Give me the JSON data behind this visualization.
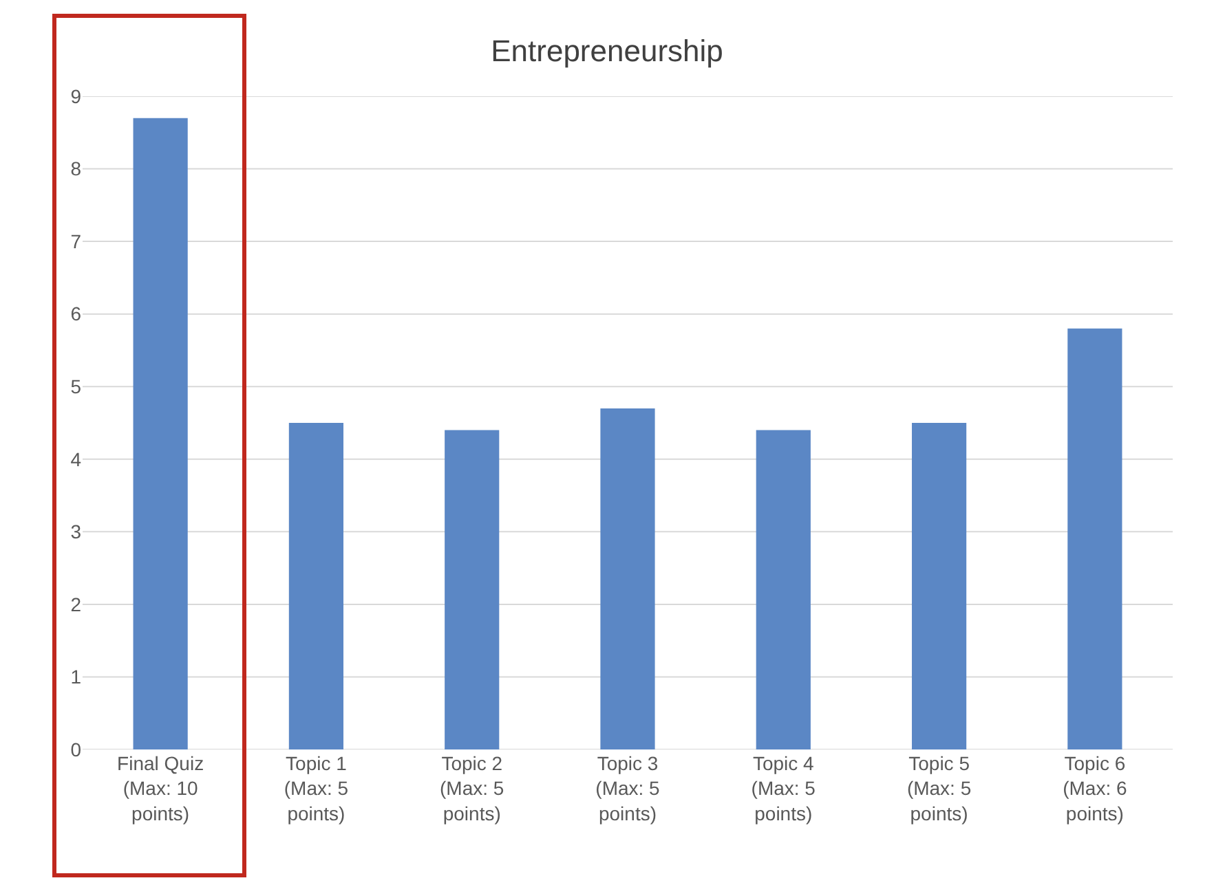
{
  "chart_data": {
    "type": "bar",
    "title": "Entrepreneurship",
    "categories": [
      "Final Quiz (Max: 10 points)",
      "Topic 1 (Max: 5 points)",
      "Topic 2 (Max: 5 points)",
      "Topic 3 (Max: 5 points)",
      "Topic 4 (Max: 5 points)",
      "Topic 5 (Max: 5 points)",
      "Topic 6 (Max: 6 points)"
    ],
    "values": [
      8.7,
      4.5,
      4.4,
      4.7,
      4.4,
      4.5,
      5.8
    ],
    "color": "#5b87c5",
    "ylim": [
      0,
      9
    ],
    "yticks": [
      0,
      1,
      2,
      3,
      4,
      5,
      6,
      7,
      8,
      9
    ],
    "grid": "y"
  }
}
